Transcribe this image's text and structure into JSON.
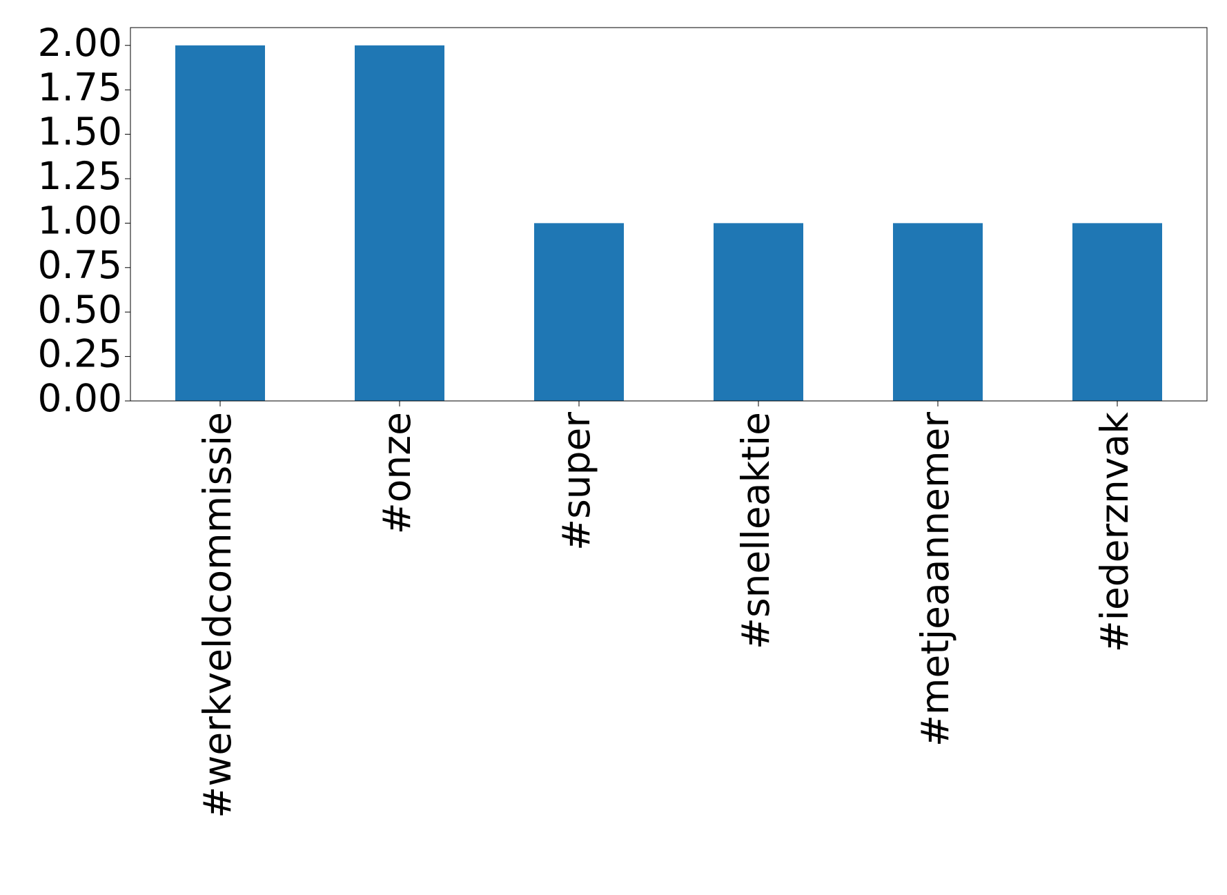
{
  "chart_data": {
    "type": "bar",
    "categories": [
      "#werkveldcommissie",
      "#onze",
      "#super",
      "#snelleaktie",
      "#metjeaannemer",
      "#iederznvak"
    ],
    "values": [
      2,
      2,
      1,
      1,
      1,
      1
    ],
    "color": "#1f77b4",
    "ylim": [
      0,
      2.1
    ],
    "yticks": [
      {
        "value": 0,
        "label": "0.00"
      },
      {
        "value": 0.25,
        "label": "0.25"
      },
      {
        "value": 0.5,
        "label": "0.50"
      },
      {
        "value": 0.75,
        "label": "0.75"
      },
      {
        "value": 1,
        "label": "1.00"
      },
      {
        "value": 1.25,
        "label": "1.25"
      },
      {
        "value": 1.5,
        "label": "1.50"
      },
      {
        "value": 1.75,
        "label": "1.75"
      },
      {
        "value": 2,
        "label": "2.00"
      }
    ],
    "grid": false
  }
}
